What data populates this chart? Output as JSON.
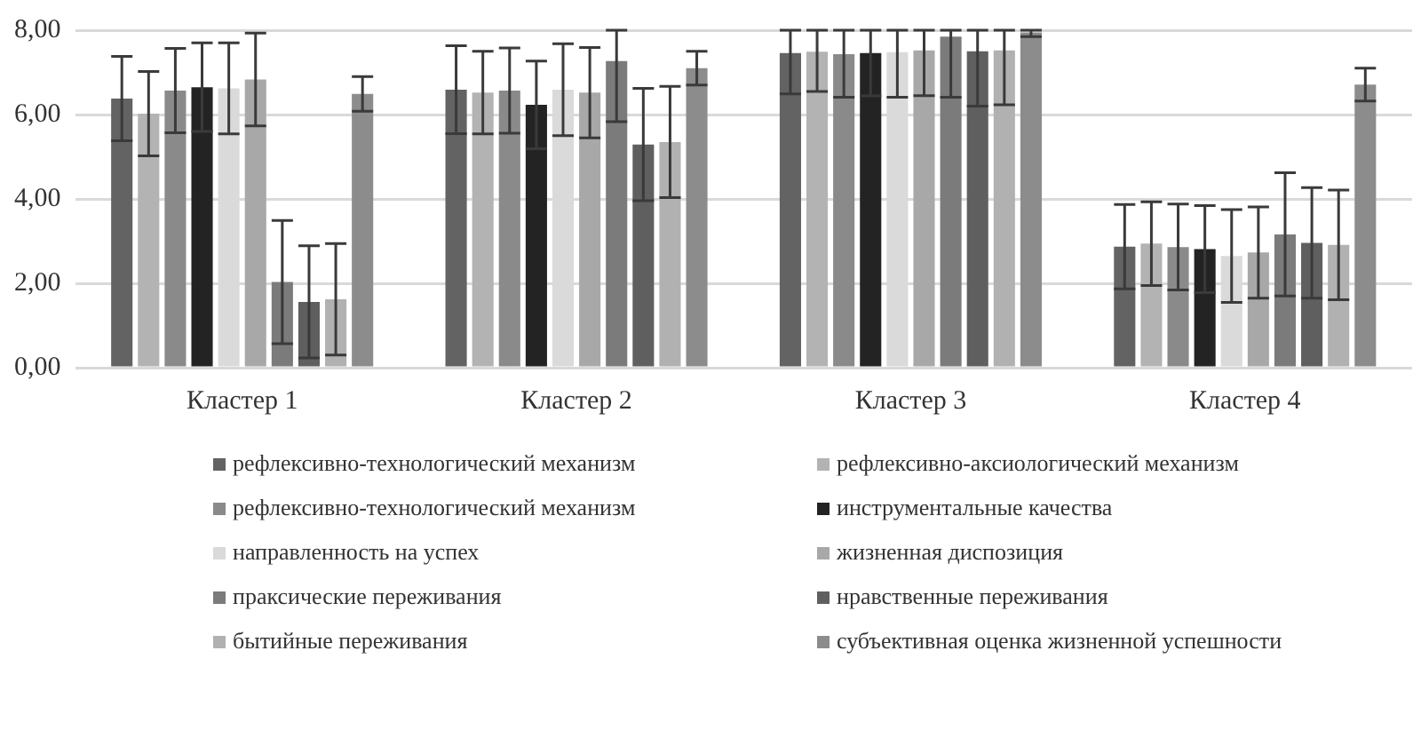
{
  "chart_data": {
    "type": "bar",
    "categories": [
      "Кластер 1",
      "Кластер 2",
      "Кластер 3",
      "Кластер 4"
    ],
    "ylim": [
      0,
      8
    ],
    "yticks": [
      {
        "value": 0,
        "label": "0,00"
      },
      {
        "value": 2,
        "label": "2,00"
      },
      {
        "value": 4,
        "label": "4,00"
      },
      {
        "value": 6,
        "label": "6,00"
      },
      {
        "value": 8,
        "label": "8,00"
      }
    ],
    "grid": "y",
    "legend": "bottom",
    "series": [
      {
        "name": "рефлексивно-технологический механизм",
        "color": "#636363",
        "values": [
          6.38,
          6.59,
          7.46,
          2.87
        ],
        "errors": [
          1.0,
          1.04,
          [
            6.49,
            8
          ],
          1.0
        ]
      },
      {
        "name": "рефлексивно-аксиологический механизм",
        "color": "#b3b3b3",
        "values": [
          6.02,
          6.52,
          7.49,
          2.94
        ],
        "errors": [
          1.0,
          0.98,
          [
            6.55,
            8
          ],
          0.99
        ]
      },
      {
        "name": "рефлексивно-технологический механизм",
        "color": "#8a8a8a",
        "values": [
          6.57,
          6.57,
          7.43,
          2.86
        ],
        "errors": [
          1.0,
          1.01,
          [
            6.41,
            8
          ],
          1.02
        ]
      },
      {
        "name": "инструментальные качества",
        "color": "#232323",
        "values": [
          6.65,
          6.23,
          7.46,
          2.81
        ],
        "errors": [
          1.05,
          1.04,
          [
            6.44,
            8
          ],
          1.03
        ]
      },
      {
        "name": "направленность на успех",
        "color": "#dadada",
        "values": [
          6.62,
          6.59,
          7.48,
          2.65
        ],
        "errors": [
          1.08,
          1.09,
          [
            6.41,
            8
          ],
          1.1
        ]
      },
      {
        "name": "жизненная диспозиция",
        "color": "#a8a8a8",
        "values": [
          6.83,
          6.52,
          7.52,
          2.73
        ],
        "errors": [
          1.1,
          1.07,
          [
            6.45,
            8
          ],
          1.08
        ]
      },
      {
        "name": "праксические переживания",
        "color": "#7b7b7b",
        "values": [
          2.03,
          7.27,
          7.85,
          3.16
        ],
        "errors": [
          1.46,
          [
            5.83,
            8
          ],
          [
            6.41,
            8
          ],
          1.46
        ]
      },
      {
        "name": "нравственные переживания",
        "color": "#5f5f5f",
        "values": [
          1.56,
          5.29,
          7.5,
          2.96
        ],
        "errors": [
          1.33,
          1.33,
          [
            6.2,
            8
          ],
          1.31
        ]
      },
      {
        "name": "бытийные переживания",
        "color": "#b1b1b1",
        "values": [
          1.62,
          5.35,
          7.52,
          2.91
        ],
        "errors": [
          1.32,
          1.32,
          [
            6.23,
            8
          ],
          1.3
        ]
      },
      {
        "name": "субъективная оценка жизненной успешности",
        "color": "#8c8c8c",
        "values": [
          6.49,
          7.1,
          7.95,
          6.71
        ],
        "errors": [
          0.41,
          0.4,
          [
            7.85,
            8
          ],
          0.39
        ]
      }
    ]
  }
}
